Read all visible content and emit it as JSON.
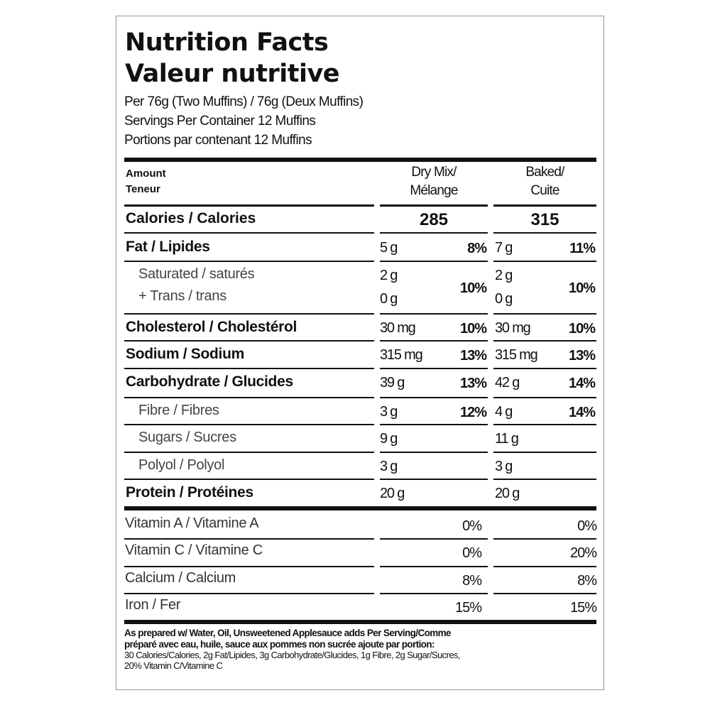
{
  "header": {
    "title_en": "Nutrition Facts",
    "title_fr": "Valeur nutritive",
    "serving": "Per 76g  (Two Muffins) / 76g (Deux Muffins)",
    "servings_en": "Servings Per Container 12 Muffins",
    "servings_fr": "Portions par contenant 12 Muffins"
  },
  "columns": {
    "amount": [
      "Amount",
      "Teneur"
    ],
    "dry": [
      "Dry Mix/",
      "Mélange"
    ],
    "baked": [
      "Baked/",
      "Cuite"
    ]
  },
  "calories": {
    "name": "Calories / Calories",
    "dry": "285",
    "baked": "315"
  },
  "nutrients": [
    {
      "name": "Fat / Lipides",
      "dry_amount": "5 g",
      "dry_dv": "8%",
      "baked_amount": "7 g",
      "baked_dv": "11%"
    },
    {
      "name": [
        "Saturated / saturés",
        "+ Trans / trans"
      ],
      "dry_amount": [
        "2 g",
        "0 g"
      ],
      "dry_dv": "10%",
      "baked_amount": [
        "2 g",
        "0 g"
      ],
      "baked_dv": "10%"
    },
    {
      "name": "Cholesterol / Cholestérol",
      "dry_amount": "30 mg",
      "dry_dv": "10%",
      "baked_amount": "30 mg",
      "baked_dv": "10%"
    },
    {
      "name": "Sodium / Sodium",
      "dry_amount": "315 mg",
      "dry_dv": "13%",
      "baked_amount": "315 mg",
      "baked_dv": "13%"
    },
    {
      "name": "Carbohydrate / Glucides",
      "dry_amount": "39 g",
      "dry_dv": "13%",
      "baked_amount": "42 g",
      "baked_dv": "14%"
    },
    {
      "name": "Fibre / Fibres",
      "dry_amount": "3 g",
      "dry_dv": "12%",
      "baked_amount": "4 g",
      "baked_dv": "14%"
    },
    {
      "name": "Sugars / Sucres",
      "dry_amount": "9 g",
      "baked_amount": "11 g"
    },
    {
      "name": "Polyol / Polyol",
      "dry_amount": "3 g",
      "baked_amount": "3 g"
    },
    {
      "name": "Protein / Protéines",
      "dry_amount": "20 g",
      "baked_amount": "20 g"
    }
  ],
  "vitamins": [
    {
      "name": "Vitamin A / Vitamine A",
      "dry": "0%",
      "baked": "0%"
    },
    {
      "name": "Vitamin C / Vitamine C",
      "dry": "0%",
      "baked": "20%"
    },
    {
      "name": "Calcium / Calcium",
      "dry": "8%",
      "baked": "8%"
    },
    {
      "name": "Iron / Fer",
      "dry": "15%",
      "baked": "15%"
    }
  ],
  "footnote": [
    "As prepared w/ Water, Oil, Unsweetened Applesauce adds Per Serving/Comme",
    "préparé avec eau, huile, sauce aux pommes non sucrée ajoute par portion:",
    "30 Calories/Calories, 2g Fat/Lipides, 3g Carbohydrate/Glucides, 1g Fibre, 2g Sugar/Sucres,",
    "20% Vitamin C/Vitamine C"
  ]
}
